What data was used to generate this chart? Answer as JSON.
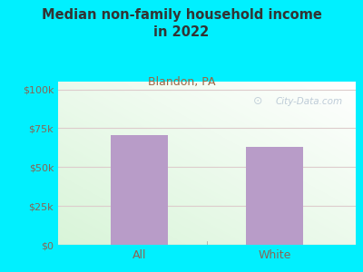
{
  "title": "Median non-family household income\nin 2022",
  "subtitle": "Blandon, PA",
  "categories": [
    "All",
    "White"
  ],
  "values": [
    70500,
    63000
  ],
  "bar_color": "#b89cc8",
  "background_color": "#00f0ff",
  "title_color": "#333333",
  "subtitle_color": "#996644",
  "axis_label_color": "#886655",
  "yticks": [
    0,
    25000,
    50000,
    75000,
    100000
  ],
  "ytick_labels": [
    "$0",
    "$25k",
    "$50k",
    "$75k",
    "$100k"
  ],
  "ylim": [
    0,
    105000
  ],
  "watermark": "City-Data.com",
  "watermark_color": "#aabbcc",
  "grid_color": "#ddcccc",
  "plot_bg_topleft": "#d8f0d0",
  "plot_bg_topright": "#eef8f0",
  "plot_bg_bottomleft": "#c8e8c0",
  "plot_bg_bottomright": "#f8fef8"
}
